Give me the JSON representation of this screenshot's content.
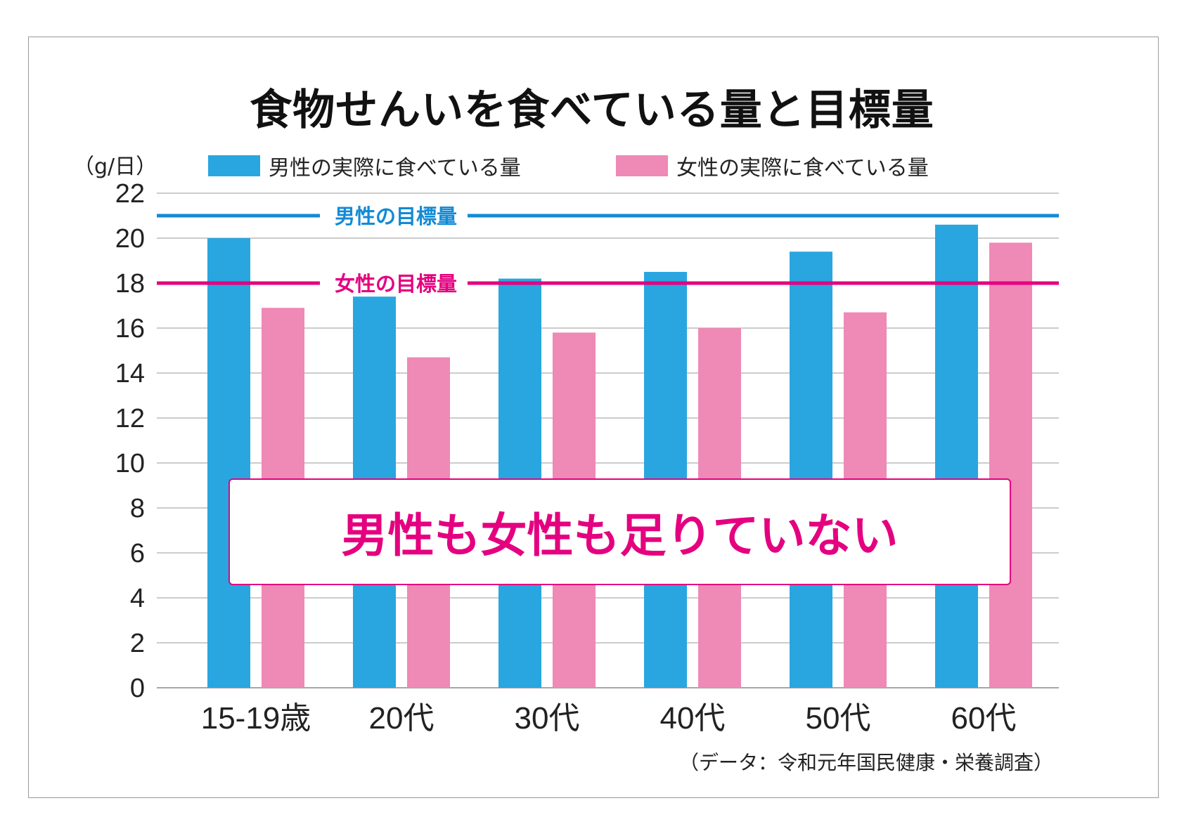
{
  "chart_data": {
    "type": "bar",
    "title": "食物せんいを食べている量と目標量",
    "ylabel": "（g/日）",
    "xlabel": "",
    "ylim": [
      0,
      22
    ],
    "yticks": [
      0,
      2,
      4,
      6,
      8,
      10,
      12,
      14,
      16,
      18,
      20,
      22
    ],
    "categories": [
      "15-19歳",
      "20代",
      "30代",
      "40代",
      "50代",
      "60代"
    ],
    "series": [
      {
        "name": "男性の実際に食べている量",
        "color": "#29a6e0",
        "values": [
          20.0,
          17.4,
          18.2,
          18.5,
          19.4,
          20.6
        ]
      },
      {
        "name": "女性の実際に食べている量",
        "color": "#ef89b6",
        "values": [
          16.9,
          14.7,
          15.8,
          16.0,
          16.7,
          19.8
        ]
      }
    ],
    "reference_lines": [
      {
        "label": "男性の目標量",
        "value": 21,
        "color": "#138ad4"
      },
      {
        "label": "女性の目標量",
        "value": 18,
        "color": "#e4007f"
      }
    ],
    "grid": true,
    "legend_position": "top",
    "annotation": "男性も女性も足りていない",
    "source": "（データ：令和元年国民健康・栄養調査）"
  }
}
